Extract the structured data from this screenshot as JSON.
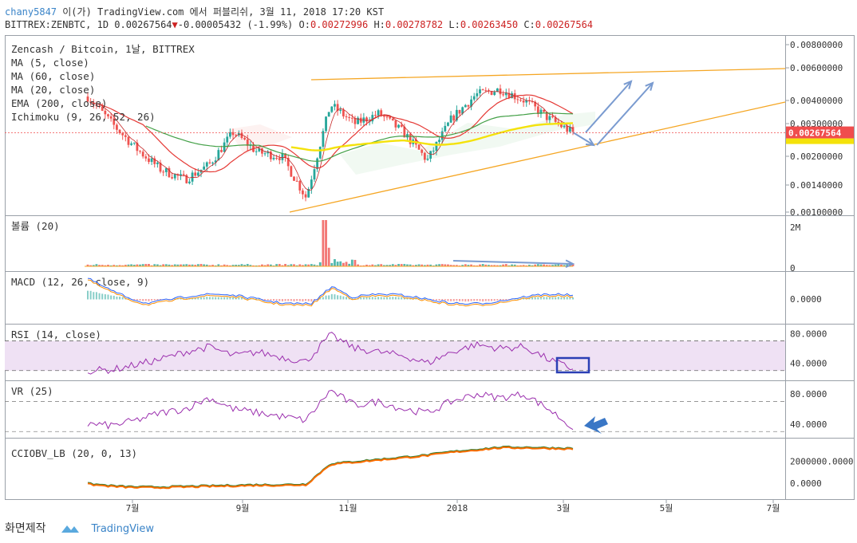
{
  "header": {
    "user": "chany5847",
    "published_text": "이(가) TradingView.com 에서 퍼블리쉬, 3월 11, 2018 17:20 KST",
    "symbol": "BITTREX:ZENBTC, 1D",
    "last": "0.00267564",
    "change": "-0.00005432 (-1.99%)",
    "o_label": "O:",
    "o": "0.00272996",
    "h_label": "H:",
    "h": "0.00278782",
    "l_label": "L:",
    "l": "0.00263450",
    "c_label": "C:",
    "c": "0.00267564"
  },
  "legend": [
    "Zencash / Bitcoin, 1날, BITTREX",
    "MA (5, close)",
    "MA (60, close)",
    "MA (20, close)",
    "EMA (200, close)",
    "Ichimoku (9, 26, 52, 26)"
  ],
  "price_badge": "0.00267564",
  "pane_labels": {
    "volume": "볼륨 (20)",
    "macd": "MACD (12, 26, close, 9)",
    "rsi": "RSI (14, close)",
    "vr": "VR (25)",
    "cci": "CCIOBV_LB (20, 0, 13)"
  },
  "x_axis": [
    "7월",
    "9월",
    "11월",
    "2018",
    "3월",
    "5월",
    "7월"
  ],
  "footer": {
    "snapshot": "화면제작",
    "brand": "TradingView"
  },
  "colors": {
    "bull": "#26a69a",
    "bear": "#ef5350",
    "trend": "#f5a623",
    "ma_red": "#e53935",
    "ma_green": "#43a047",
    "ema": "#f4e20a",
    "arrow": "#7a9bd0",
    "rsi": "#9b2fae",
    "badge": "#f04d4d"
  },
  "chart_data": [
    {
      "type": "candlestick",
      "title": "Zencash / Bitcoin, 1날, BITTREX",
      "y_ticks": [
        "0.00800000",
        "0.00600000",
        "0.00400000",
        "0.00300000",
        "0.00200000",
        "0.00140000",
        "0.00100000"
      ],
      "ylim": [
        0.001,
        0.008
      ],
      "y_scale": "log",
      "x_ticks": [
        "7월",
        "9월",
        "11월",
        "2018",
        "3월",
        "5월",
        "7월"
      ],
      "close_path": [
        0.0042,
        0.003,
        0.0022,
        0.0017,
        0.0015,
        0.0018,
        0.0027,
        0.0021,
        0.002,
        0.0012,
        0.0038,
        0.003,
        0.0034,
        0.0027,
        0.0019,
        0.0032,
        0.0043,
        0.0046,
        0.004,
        0.0032,
        0.00267564
      ],
      "last": 0.00267564
    },
    {
      "type": "bar",
      "title": "볼륨 (20)",
      "y_ticks": [
        "2M",
        "0"
      ]
    },
    {
      "type": "line",
      "title": "MACD (12, 26, close, 9)",
      "y_ticks": [
        "0.0000"
      ]
    },
    {
      "type": "line",
      "title": "RSI (14, close)",
      "y_ticks": [
        "80.0000",
        "40.0000"
      ],
      "ylim": [
        20,
        90
      ],
      "values": [
        30,
        31,
        38,
        45,
        55,
        62,
        50,
        55,
        48,
        42,
        78,
        60,
        55,
        50,
        40,
        55,
        65,
        60,
        62,
        45,
        32
      ]
    },
    {
      "type": "line",
      "title": "VR (25)",
      "y_ticks": [
        "80.0000",
        "40.0000"
      ],
      "ylim": [
        25,
        95
      ],
      "values": [
        40,
        38,
        45,
        55,
        60,
        75,
        60,
        55,
        50,
        45,
        85,
        65,
        70,
        60,
        55,
        70,
        80,
        75,
        80,
        60,
        35
      ]
    },
    {
      "type": "line",
      "title": "CCIOBV_LB (20, 0, 13)",
      "y_ticks": [
        "2000000.0000",
        "0.0000"
      ],
      "ylim": [
        -1000000,
        3700000
      ],
      "values": [
        0,
        -200000,
        -300000,
        -300000,
        -250000,
        -200000,
        -150000,
        -100000,
        -100000,
        -50000,
        1800000,
        2000000,
        2200000,
        2400000,
        2600000,
        2900000,
        3100000,
        3300000,
        3300000,
        3250000,
        3200000
      ]
    }
  ]
}
